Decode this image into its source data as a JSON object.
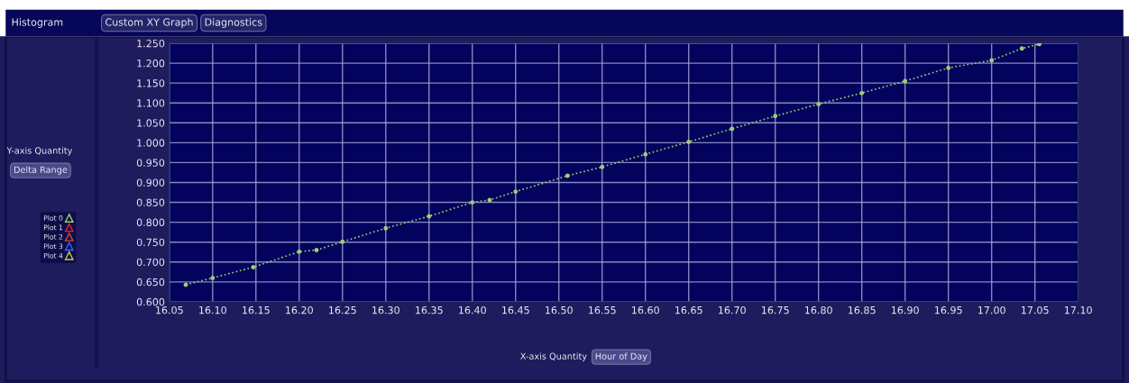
{
  "chart_data": {
    "type": "line",
    "x": [
      16.069,
      16.1,
      16.147,
      16.2,
      16.22,
      16.25,
      16.3,
      16.35,
      16.4,
      16.42,
      16.45,
      16.51,
      16.55,
      16.6,
      16.65,
      16.7,
      16.75,
      16.8,
      16.85,
      16.9,
      16.95,
      17.0,
      17.035,
      17.055
    ],
    "series": [
      {
        "name": "Plot 0",
        "color": "#9ccf74",
        "values": [
          0.643,
          0.66,
          0.687,
          0.726,
          0.73,
          0.751,
          0.785,
          0.815,
          0.85,
          0.856,
          0.877,
          0.917,
          0.939,
          0.971,
          1.002,
          1.035,
          1.067,
          1.097,
          1.125,
          1.155,
          1.188,
          1.207,
          1.237,
          1.248
        ]
      },
      {
        "name": "Plot 1",
        "color": "#e02424",
        "values": [
          null,
          null,
          null,
          null,
          null,
          null,
          null,
          null,
          null,
          null,
          null,
          null,
          null,
          null,
          null,
          null,
          null,
          null,
          null,
          null,
          null,
          null,
          null,
          null
        ]
      },
      {
        "name": "Plot 2",
        "color": "#d8482a",
        "values": [
          null,
          null,
          null,
          null,
          null,
          null,
          null,
          null,
          null,
          null,
          null,
          null,
          null,
          null,
          null,
          null,
          null,
          null,
          null,
          null,
          null,
          null,
          null,
          null
        ]
      },
      {
        "name": "Plot 3",
        "color": "#3a66ff",
        "values": [
          null,
          null,
          null,
          null,
          null,
          null,
          null,
          null,
          null,
          null,
          null,
          null,
          null,
          null,
          null,
          null,
          null,
          null,
          null,
          null,
          null,
          null,
          null,
          null
        ]
      },
      {
        "name": "Plot 4",
        "color": "#c8c848",
        "values": [
          null,
          null,
          null,
          null,
          null,
          null,
          null,
          null,
          null,
          null,
          null,
          null,
          null,
          null,
          null,
          null,
          null,
          null,
          null,
          null,
          null,
          null,
          null,
          null
        ]
      }
    ],
    "xlim": [
      16.05,
      17.1
    ],
    "xticks": [
      {
        "value": 16.05,
        "label": "16.05"
      },
      {
        "value": 16.1,
        "label": "16.10"
      },
      {
        "value": 16.15,
        "label": "16.15"
      },
      {
        "value": 16.2,
        "label": "16.20"
      },
      {
        "value": 16.25,
        "label": "16.25"
      },
      {
        "value": 16.3,
        "label": "16.30"
      },
      {
        "value": 16.35,
        "label": "16.35"
      },
      {
        "value": 16.4,
        "label": "16.40"
      },
      {
        "value": 16.45,
        "label": "16.45"
      },
      {
        "value": 16.5,
        "label": "16.50"
      },
      {
        "value": 16.55,
        "label": "16.55"
      },
      {
        "value": 16.6,
        "label": "16.60"
      },
      {
        "value": 16.65,
        "label": "16.65"
      },
      {
        "value": 16.7,
        "label": "16.70"
      },
      {
        "value": 16.75,
        "label": "16.75"
      },
      {
        "value": 16.8,
        "label": "16.80"
      },
      {
        "value": 16.85,
        "label": "16.85"
      },
      {
        "value": 16.9,
        "label": "16.90"
      },
      {
        "value": 16.95,
        "label": "16.95"
      },
      {
        "value": 17.0,
        "label": "17.00"
      },
      {
        "value": 17.05,
        "label": "17.05"
      },
      {
        "value": 17.1,
        "label": "17.10"
      }
    ],
    "ylim": [
      0.6,
      1.25
    ],
    "yticks": [
      {
        "value": 0.6,
        "label": "0.600"
      },
      {
        "value": 0.65,
        "label": "0.650"
      },
      {
        "value": 0.7,
        "label": "0.700"
      },
      {
        "value": 0.75,
        "label": "0.750"
      },
      {
        "value": 0.8,
        "label": "0.800"
      },
      {
        "value": 0.85,
        "label": "0.850"
      },
      {
        "value": 0.9,
        "label": "0.900"
      },
      {
        "value": 0.95,
        "label": "0.950"
      },
      {
        "value": 1.0,
        "label": "1.000"
      },
      {
        "value": 1.05,
        "label": "1.050"
      },
      {
        "value": 1.1,
        "label": "1.100"
      },
      {
        "value": 1.15,
        "label": "1.150"
      },
      {
        "value": 1.2,
        "label": "1.200"
      },
      {
        "value": 1.25,
        "label": "1.250"
      }
    ],
    "grid": true,
    "legend": "left",
    "marker": "circle",
    "line_style": "dotted",
    "annotations": [
      "Histogram",
      "Custom XY Graph",
      "Diagnostics",
      "Y-axis Quantity",
      "Delta Range",
      "X-axis Quantity",
      "Hour of Day"
    ]
  }
}
